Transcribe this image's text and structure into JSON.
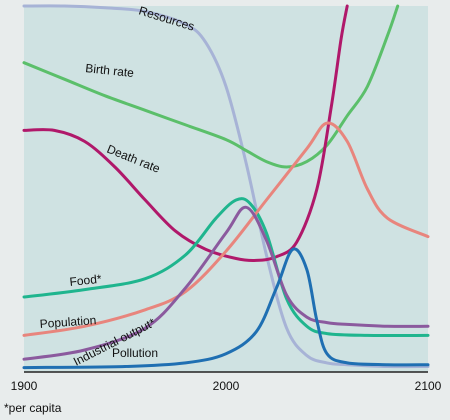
{
  "chart_data": {
    "type": "line",
    "title": "",
    "xlabel": "",
    "ylabel": "",
    "xlim": [
      1900,
      2100
    ],
    "ylim": [
      0,
      1
    ],
    "y_axis_shown": false,
    "x_ticks": [
      "1900",
      "2000",
      "2100"
    ],
    "grid": false,
    "legend": "inline labels on curves",
    "footnote": "*per capita",
    "series": [
      {
        "name": "Resources",
        "color": "#a7b3d6",
        "x": [
          1900,
          1920,
          1940,
          1960,
          1980,
          1990,
          2000,
          2010,
          2020,
          2030,
          2040,
          2050,
          2060,
          2080,
          2100
        ],
        "values": [
          1.0,
          1.0,
          0.995,
          0.985,
          0.95,
          0.9,
          0.78,
          0.57,
          0.32,
          0.12,
          0.045,
          0.025,
          0.02,
          0.015,
          0.015
        ]
      },
      {
        "name": "Birth rate",
        "color": "#5bbf6a",
        "x": [
          1900,
          1920,
          1940,
          1960,
          1980,
          2000,
          2010,
          2020,
          2030,
          2040,
          2050,
          2060,
          2070,
          2080,
          2085
        ],
        "values": [
          0.845,
          0.8,
          0.755,
          0.715,
          0.675,
          0.635,
          0.605,
          0.575,
          0.56,
          0.575,
          0.62,
          0.7,
          0.78,
          0.92,
          1.0
        ]
      },
      {
        "name": "Death rate",
        "color": "#b0186a",
        "x": [
          1900,
          1915,
          1930,
          1945,
          1960,
          1975,
          1990,
          2005,
          2015,
          2025,
          2035,
          2045,
          2052,
          2057,
          2060
        ],
        "values": [
          0.66,
          0.66,
          0.63,
          0.56,
          0.47,
          0.385,
          0.335,
          0.31,
          0.305,
          0.315,
          0.355,
          0.5,
          0.72,
          0.91,
          1.0
        ]
      },
      {
        "name": "Food*",
        "color": "#1fb58e",
        "x": [
          1900,
          1930,
          1960,
          1980,
          1995,
          2005,
          2012,
          2020,
          2030,
          2040,
          2050,
          2070,
          2100
        ],
        "values": [
          0.205,
          0.225,
          0.255,
          0.32,
          0.42,
          0.47,
          0.46,
          0.38,
          0.2,
          0.125,
          0.105,
          0.1,
          0.1
        ]
      },
      {
        "name": "Population",
        "color": "#e8857d",
        "x": [
          1900,
          1930,
          1960,
          1980,
          2000,
          2020,
          2040,
          2050,
          2060,
          2070,
          2080,
          2100
        ],
        "values": [
          0.1,
          0.125,
          0.17,
          0.22,
          0.33,
          0.47,
          0.61,
          0.68,
          0.63,
          0.5,
          0.42,
          0.37
        ]
      },
      {
        "name": "Industrial output*",
        "color": "#8b5a9e",
        "x": [
          1900,
          1930,
          1960,
          1980,
          2000,
          2010,
          2020,
          2030,
          2040,
          2050,
          2060,
          2080,
          2100
        ],
        "values": [
          0.035,
          0.06,
          0.12,
          0.23,
          0.38,
          0.45,
          0.36,
          0.21,
          0.15,
          0.135,
          0.13,
          0.125,
          0.125
        ]
      },
      {
        "name": "Pollution",
        "color": "#1f6fb2",
        "x": [
          1900,
          1950,
          1980,
          2000,
          2015,
          2025,
          2033,
          2040,
          2045,
          2050,
          2060,
          2080,
          2100
        ],
        "values": [
          0.012,
          0.015,
          0.025,
          0.05,
          0.11,
          0.23,
          0.335,
          0.28,
          0.14,
          0.05,
          0.025,
          0.02,
          0.02
        ]
      }
    ]
  }
}
